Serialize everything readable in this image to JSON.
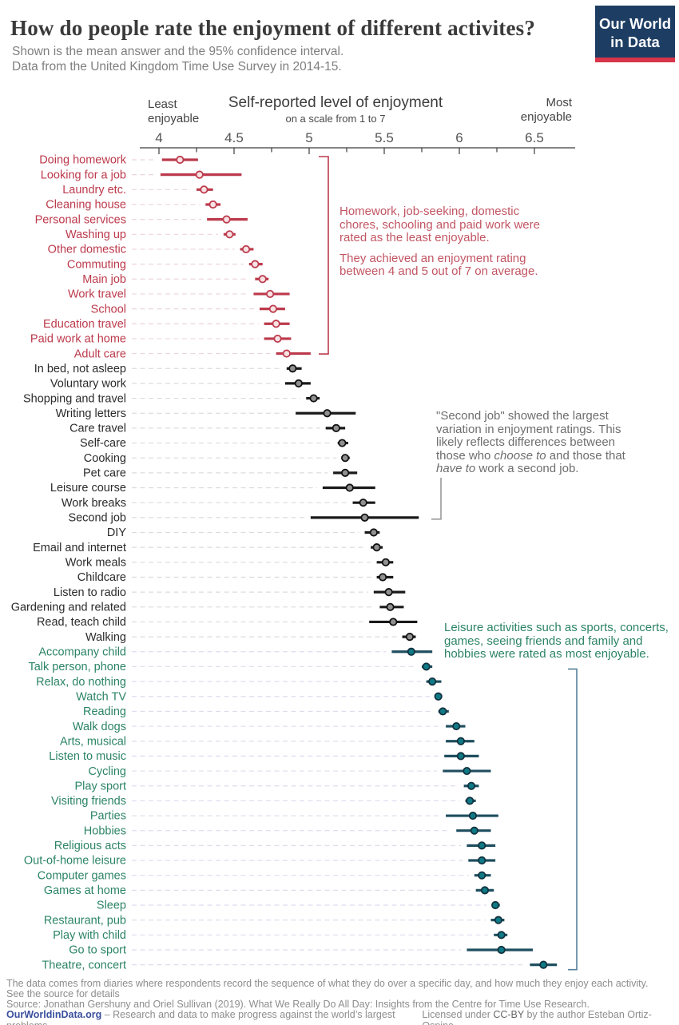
{
  "header": {
    "title": "How do people rate the enjoyment of different activites?",
    "subtitle_line1": "Shown is the mean answer and the 95% confidence interval.",
    "subtitle_line2": "Data from the United Kingdom Time Use Survey in 2014-15.",
    "logo_line1": "Our World",
    "logo_line2": "in Data"
  },
  "axis_header": {
    "title": "Self-reported level of enjoyment",
    "subtitle": "on a scale from 1 to 7",
    "left_line1": "Least",
    "left_line2": "enjoyable",
    "right_line1": "Most",
    "right_line2": "enjoyable"
  },
  "chart_data": {
    "type": "scatter",
    "subtype": "dot-plot-with-95ci",
    "title": "Self-reported level of enjoyment",
    "xlabel": "on a scale from 1 to 7",
    "xlim": [
      4,
      6.5
    ],
    "tick_values": [
      4,
      4.5,
      5,
      5.5,
      6,
      6.5
    ],
    "tick_labels": [
      "4",
      "4.5",
      "5",
      "5.5",
      "6",
      "6.5"
    ],
    "minor_tick_step": 0.25,
    "grid": false,
    "legend": "none",
    "rows": [
      {
        "label": "Doing homework",
        "group": "least",
        "mean": 4.14,
        "lo": 4.02,
        "hi": 4.26
      },
      {
        "label": "Looking for a job",
        "group": "least",
        "mean": 4.27,
        "lo": 4.01,
        "hi": 4.55
      },
      {
        "label": "Laundry etc.",
        "group": "least",
        "mean": 4.3,
        "lo": 4.25,
        "hi": 4.36
      },
      {
        "label": "Cleaning house",
        "group": "least",
        "mean": 4.36,
        "lo": 4.31,
        "hi": 4.41
      },
      {
        "label": "Personal services",
        "group": "least",
        "mean": 4.45,
        "lo": 4.32,
        "hi": 4.59
      },
      {
        "label": "Washing up",
        "group": "least",
        "mean": 4.47,
        "lo": 4.43,
        "hi": 4.51
      },
      {
        "label": "Other domestic",
        "group": "least",
        "mean": 4.58,
        "lo": 4.54,
        "hi": 4.63
      },
      {
        "label": "Commuting",
        "group": "least",
        "mean": 4.64,
        "lo": 4.6,
        "hi": 4.69
      },
      {
        "label": "Main job",
        "group": "least",
        "mean": 4.69,
        "lo": 4.64,
        "hi": 4.73
      },
      {
        "label": "Work travel",
        "group": "least",
        "mean": 4.74,
        "lo": 4.63,
        "hi": 4.87
      },
      {
        "label": "School",
        "group": "least",
        "mean": 4.76,
        "lo": 4.67,
        "hi": 4.84
      },
      {
        "label": "Education travel",
        "group": "least",
        "mean": 4.78,
        "lo": 4.7,
        "hi": 4.87
      },
      {
        "label": "Paid work at home",
        "group": "least",
        "mean": 4.79,
        "lo": 4.7,
        "hi": 4.88
      },
      {
        "label": "Adult care",
        "group": "least",
        "mean": 4.85,
        "lo": 4.78,
        "hi": 5.01
      },
      {
        "label": "In bed, not asleep",
        "group": "mid",
        "mean": 4.89,
        "lo": 4.85,
        "hi": 4.95
      },
      {
        "label": "Voluntary work",
        "group": "mid",
        "mean": 4.93,
        "lo": 4.84,
        "hi": 5.01
      },
      {
        "label": "Shopping and travel",
        "group": "mid",
        "mean": 5.03,
        "lo": 4.98,
        "hi": 5.07
      },
      {
        "label": "Writing letters",
        "group": "mid",
        "mean": 5.12,
        "lo": 4.91,
        "hi": 5.31
      },
      {
        "label": "Care travel",
        "group": "mid",
        "mean": 5.18,
        "lo": 5.11,
        "hi": 5.24
      },
      {
        "label": "Self-care",
        "group": "mid",
        "mean": 5.22,
        "lo": 5.19,
        "hi": 5.26
      },
      {
        "label": "Cooking",
        "group": "mid",
        "mean": 5.24,
        "lo": 5.22,
        "hi": 5.27
      },
      {
        "label": "Pet care",
        "group": "mid",
        "mean": 5.24,
        "lo": 5.16,
        "hi": 5.32
      },
      {
        "label": "Leisure course",
        "group": "mid",
        "mean": 5.27,
        "lo": 5.09,
        "hi": 5.44
      },
      {
        "label": "Work breaks",
        "group": "mid",
        "mean": 5.36,
        "lo": 5.29,
        "hi": 5.44
      },
      {
        "label": "Second job",
        "group": "mid",
        "mean": 5.37,
        "lo": 5.01,
        "hi": 5.73
      },
      {
        "label": "DIY",
        "group": "mid",
        "mean": 5.43,
        "lo": 5.37,
        "hi": 5.47
      },
      {
        "label": "Email and internet",
        "group": "mid",
        "mean": 5.45,
        "lo": 5.41,
        "hi": 5.49
      },
      {
        "label": "Work meals",
        "group": "mid",
        "mean": 5.51,
        "lo": 5.45,
        "hi": 5.56
      },
      {
        "label": "Childcare",
        "group": "mid",
        "mean": 5.49,
        "lo": 5.45,
        "hi": 5.56
      },
      {
        "label": "Listen to radio",
        "group": "mid",
        "mean": 5.53,
        "lo": 5.43,
        "hi": 5.64
      },
      {
        "label": "Gardening and related",
        "group": "mid",
        "mean": 5.54,
        "lo": 5.47,
        "hi": 5.63
      },
      {
        "label": "Read, teach child",
        "group": "mid",
        "mean": 5.56,
        "lo": 5.4,
        "hi": 5.72
      },
      {
        "label": "Walking",
        "group": "mid",
        "mean": 5.67,
        "lo": 5.62,
        "hi": 5.71
      },
      {
        "label": "Accompany child",
        "group": "most",
        "mean": 5.68,
        "lo": 5.55,
        "hi": 5.82
      },
      {
        "label": "Talk person, phone",
        "group": "most",
        "mean": 5.78,
        "lo": 5.75,
        "hi": 5.82
      },
      {
        "label": "Relax, do nothing",
        "group": "most",
        "mean": 5.82,
        "lo": 5.78,
        "hi": 5.88
      },
      {
        "label": "Watch TV",
        "group": "most",
        "mean": 5.86,
        "lo": 5.84,
        "hi": 5.88
      },
      {
        "label": "Reading",
        "group": "most",
        "mean": 5.89,
        "lo": 5.86,
        "hi": 5.93
      },
      {
        "label": "Walk dogs",
        "group": "most",
        "mean": 5.98,
        "lo": 5.91,
        "hi": 6.04
      },
      {
        "label": "Arts, musical",
        "group": "most",
        "mean": 6.01,
        "lo": 5.91,
        "hi": 6.1
      },
      {
        "label": "Listen to music",
        "group": "most",
        "mean": 6.01,
        "lo": 5.9,
        "hi": 6.13
      },
      {
        "label": "Cycling",
        "group": "most",
        "mean": 6.05,
        "lo": 5.89,
        "hi": 6.21
      },
      {
        "label": "Play sport",
        "group": "most",
        "mean": 6.08,
        "lo": 6.03,
        "hi": 6.13
      },
      {
        "label": "Visiting friends",
        "group": "most",
        "mean": 6.07,
        "lo": 6.04,
        "hi": 6.11
      },
      {
        "label": "Parties",
        "group": "most",
        "mean": 6.09,
        "lo": 5.91,
        "hi": 6.26
      },
      {
        "label": "Hobbies",
        "group": "most",
        "mean": 6.1,
        "lo": 5.98,
        "hi": 6.21
      },
      {
        "label": "Religious acts",
        "group": "most",
        "mean": 6.15,
        "lo": 6.05,
        "hi": 6.24
      },
      {
        "label": "Out-of-home leisure",
        "group": "most",
        "mean": 6.15,
        "lo": 6.06,
        "hi": 6.24
      },
      {
        "label": "Computer games",
        "group": "most",
        "mean": 6.15,
        "lo": 6.1,
        "hi": 6.21
      },
      {
        "label": "Games at home",
        "group": "most",
        "mean": 6.17,
        "lo": 6.11,
        "hi": 6.23
      },
      {
        "label": "Sleep",
        "group": "most",
        "mean": 6.24,
        "lo": 6.22,
        "hi": 6.27
      },
      {
        "label": "Restaurant, pub",
        "group": "most",
        "mean": 6.26,
        "lo": 6.21,
        "hi": 6.3
      },
      {
        "label": "Play with child",
        "group": "most",
        "mean": 6.28,
        "lo": 6.23,
        "hi": 6.32
      },
      {
        "label": "Go to sport",
        "group": "most",
        "mean": 6.28,
        "lo": 6.05,
        "hi": 6.49
      },
      {
        "label": "Theatre, concert",
        "group": "most",
        "mean": 6.56,
        "lo": 6.47,
        "hi": 6.65
      }
    ]
  },
  "annotations": {
    "least_para1": "Homework, job-seeking, domestic chores, schooling and paid work were rated as the least enjoyable.",
    "least_para2": "They achieved an enjoyment rating between 4 and 5 out of 7 on average.",
    "mid_parts": [
      "\"Second job\" showed the largest variation in enjoyment ratings. This likely reflects differences between those who ",
      "choose to",
      " and those that ",
      "have to",
      " work a second job."
    ],
    "most_text": "Leisure activities such as sports, concerts, games, seeing friends and family and hobbies were rated as most enjoyable."
  },
  "footer": {
    "line1": "The data comes from diaries where respondents record the sequence of what they do over a specific day, and how much they enjoy each activity.",
    "line2": "See the source for details",
    "line3": "Source: Jonathan Gershuny and Oriel Sullivan (2019). What We Really Do All Day: Insights from the Centre for Time Use Research.",
    "link": "OurWorldinData.org",
    "tagline": " – Research and data to make progress against the world’s largest problems.",
    "licensed_pre": "Licensed under ",
    "licensed_ccby": "CC-BY",
    "licensed_post": " by the author Esteban Ortiz-Ospina."
  },
  "colors": {
    "least_bar": "#bc3a4c",
    "least_label": "#bc3a4c",
    "least_dot_fill": "#f7e2e4",
    "mid_bar": "#1a1a1a",
    "mid_label": "#2b2b2b",
    "mid_dot_fill": "#909090",
    "most_bar": "#1f4e5f",
    "most_label": "#2c8465",
    "most_dot_fill": "#0f7a85",
    "most_dot_stroke": "#12323f",
    "least_dash": "#ecd5d8",
    "mid_dash": "#dcdcdc",
    "most_dash": "#dfdcec",
    "bracket_least": "#bc3a4c",
    "bracket_most": "#55809a",
    "connector_mid": "#9a9a9a",
    "axis": "#3d3d3d",
    "logo_bg": "#1d3d63",
    "logo_stripe": "#d8344a",
    "link": "#3a4f9e"
  }
}
